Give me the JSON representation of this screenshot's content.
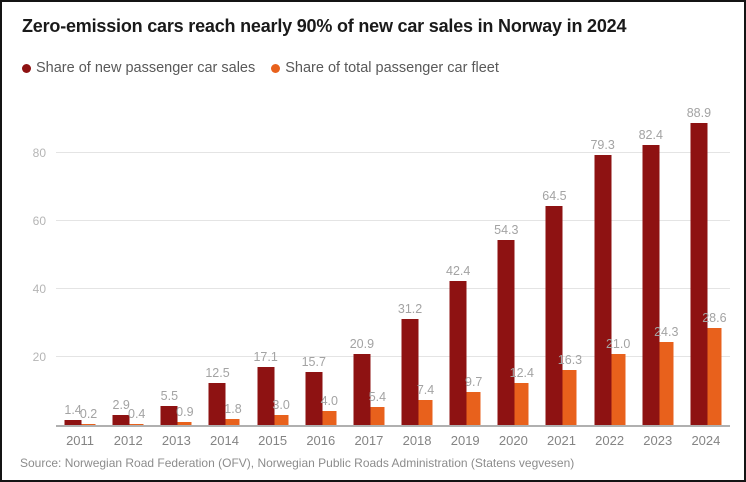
{
  "title": "Zero-emission cars reach nearly 90% of new car sales in Norway in 2024",
  "legend": {
    "items": [
      {
        "key": "sales",
        "label": "Share of new passenger car sales",
        "color": "#8E1212"
      },
      {
        "key": "fleet",
        "label": "Share of total passenger car fleet",
        "color": "#E8611C"
      }
    ]
  },
  "source": "Source: Norwegian Road Federation (OFV), Norwegian Public Roads Administration (Statens vegvesen)",
  "colors": {
    "sales_bar": "#8E1212",
    "fleet_bar": "#E8611C",
    "gridline": "#e4e4e4",
    "axis_line": "#b0b0b0",
    "value_label": "#a3a3a3",
    "title_text": "#1a1a1a"
  },
  "chart_data": {
    "type": "bar",
    "title": "Zero-emission cars reach nearly 90% of new car sales in Norway in 2024",
    "categories": [
      "2011",
      "2012",
      "2013",
      "2014",
      "2015",
      "2016",
      "2017",
      "2018",
      "2019",
      "2020",
      "2021",
      "2022",
      "2023",
      "2024"
    ],
    "series": [
      {
        "key": "sales",
        "name": "Share of new passenger car sales",
        "color": "#8E1212",
        "values": [
          1.4,
          2.9,
          5.5,
          12.5,
          17.1,
          15.7,
          20.9,
          31.2,
          42.4,
          54.3,
          64.5,
          79.3,
          82.4,
          88.9
        ],
        "labels": [
          "1.4",
          "2.9",
          "5.5",
          "12.5",
          "17.1",
          "15.7",
          "20.9",
          "31.2",
          "42.4",
          "54.3",
          "64.5",
          "79.3",
          "82.4",
          "88.9"
        ]
      },
      {
        "key": "fleet",
        "name": "Share of total passenger car fleet",
        "color": "#E8611C",
        "values": [
          0.2,
          0.4,
          0.9,
          1.8,
          3.0,
          4.0,
          5.4,
          7.4,
          9.7,
          12.4,
          16.3,
          21.0,
          24.3,
          28.6
        ],
        "labels": [
          "0.2",
          "0.4",
          "0.9",
          "1.8",
          "3.0",
          "4.0",
          "5.4",
          "7.4",
          "9.7",
          "12.4",
          "16.3",
          "21.0",
          "24.3",
          "28.6"
        ]
      }
    ],
    "xlabel": "",
    "ylabel": "",
    "ylim": [
      0,
      95
    ],
    "yticks": [
      20,
      40,
      60,
      80
    ],
    "grid": true,
    "legend_position": "top-left",
    "value_labels": true
  }
}
